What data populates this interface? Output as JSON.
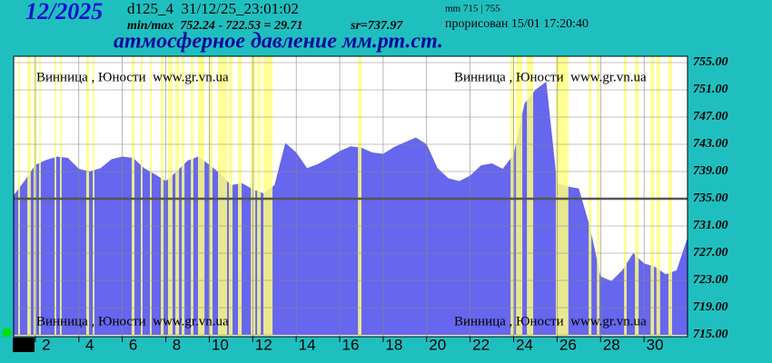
{
  "chart_data": {
    "type": "area",
    "period": "12/2025",
    "station_stamp": "d125_4  31/12/25_23:01:02",
    "minmax": "min/max  752.24 - 722.53 = 29.71",
    "average": "sr=737.97",
    "range_note": "mm 715 | 755",
    "drawn": "прорисован 15/01 17:20:40",
    "title": "атмосферное давление мм.рт.ст.",
    "watermark": "Винница , Юности  www.gr.vn.ua",
    "x": [
      1,
      1.5,
      2,
      2.5,
      3,
      3.5,
      4,
      4.5,
      5,
      5.5,
      6,
      6.5,
      7,
      7.5,
      8,
      8.5,
      9,
      9.5,
      10,
      10.5,
      11,
      11.5,
      12,
      12.5,
      13,
      13.5,
      14,
      14.5,
      15,
      15.5,
      16,
      16.5,
      17,
      17.5,
      18,
      18.5,
      19,
      19.5,
      20,
      20.5,
      21,
      21.5,
      22,
      22.5,
      23,
      23.5,
      24,
      24.5,
      25,
      25.5,
      26,
      26.5,
      27,
      27.5,
      28,
      28.5,
      29,
      29.5,
      30,
      30.5,
      31,
      31.5,
      32
    ],
    "series": [
      {
        "color": "#6666ee",
        "values": [
          735.5,
          737.6,
          740.0,
          740.7,
          741.2,
          741.0,
          739.4,
          739.0,
          739.5,
          740.8,
          741.2,
          741.0,
          739.5,
          738.6,
          737.6,
          739.0,
          740.6,
          741.2,
          740.0,
          738.7,
          737.0,
          737.3,
          736.4,
          735.8,
          737.0,
          743.2,
          741.8,
          739.5,
          740.1,
          741.0,
          742.0,
          742.7,
          742.5,
          741.8,
          741.6,
          742.6,
          743.3,
          744.0,
          743.0,
          739.5,
          738.0,
          737.6,
          738.4,
          739.9,
          740.2,
          739.4,
          741.5,
          749.0,
          751.0,
          752.2,
          737.3,
          736.8,
          736.5,
          731.0,
          723.6,
          722.9,
          724.5,
          727.0,
          725.5,
          725.0,
          723.9,
          724.5,
          729.3
        ]
      }
    ],
    "highlight_bands": [
      [
        1.21,
        1.29
      ],
      [
        1.63,
        1.79
      ],
      [
        1.92,
        2.04
      ],
      [
        2.17,
        2.25
      ],
      [
        2.88,
        2.96
      ],
      [
        3.13,
        3.21
      ],
      [
        4.34,
        4.47
      ],
      [
        4.64,
        4.72
      ],
      [
        6.43,
        6.56
      ],
      [
        6.85,
        6.93
      ],
      [
        7.27,
        7.35
      ],
      [
        7.77,
        7.9
      ],
      [
        8.1,
        8.31
      ],
      [
        8.44,
        8.61
      ],
      [
        8.73,
        8.86
      ],
      [
        9.15,
        9.27
      ],
      [
        9.48,
        9.78
      ],
      [
        9.98,
        10.15
      ],
      [
        10.4,
        10.82
      ],
      [
        10.9,
        11.07
      ],
      [
        11.32,
        11.49
      ],
      [
        11.91,
        12.12
      ],
      [
        12.2,
        12.37
      ],
      [
        12.49,
        12.91
      ],
      [
        16.84,
        17.0
      ],
      [
        23.86,
        24.03
      ],
      [
        24.11,
        24.4
      ],
      [
        24.61,
        24.9
      ],
      [
        25.94,
        26.52
      ],
      [
        27.45,
        27.58
      ],
      [
        27.83,
        27.95
      ],
      [
        29.08,
        29.2
      ],
      [
        29.58,
        29.75
      ],
      [
        30.3,
        30.46
      ],
      [
        30.57,
        30.74
      ],
      [
        31.12,
        31.29
      ]
    ],
    "band_color": "#ffff80",
    "reference_line": 735,
    "xlim": [
      1,
      32
    ],
    "xticks": [
      2,
      4,
      6,
      8,
      10,
      12,
      14,
      16,
      18,
      20,
      22,
      24,
      26,
      28,
      30
    ],
    "ylim": [
      715,
      755
    ],
    "yticks": [
      {
        "value": 715,
        "label": "715.00"
      },
      {
        "value": 719,
        "label": "719.00"
      },
      {
        "value": 723,
        "label": "723.00"
      },
      {
        "value": 727,
        "label": "727.00"
      },
      {
        "value": 731,
        "label": "731.00"
      },
      {
        "value": 735,
        "label": "735.00"
      },
      {
        "value": 739,
        "label": "739.00"
      },
      {
        "value": 743,
        "label": "743.00"
      },
      {
        "value": 747,
        "label": "747.00"
      },
      {
        "value": 751,
        "label": "751.00"
      },
      {
        "value": 755,
        "label": "755.00"
      }
    ],
    "grid": true
  }
}
